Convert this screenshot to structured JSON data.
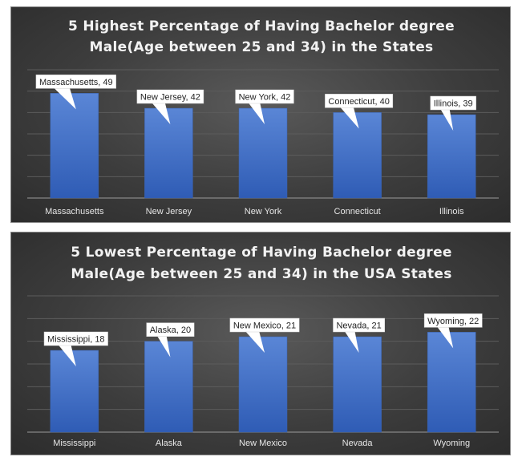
{
  "chart_data": [
    {
      "type": "bar",
      "title": "5 Highest Percentage of Having Bachelor degree Male(Age between 25 and 34) in the States",
      "title_lines": [
        "5 Highest Percentage of Having Bachelor degree",
        "Male(Age between 25 and 34) in the States"
      ],
      "categories": [
        "Massachusetts",
        "New Jersey",
        "New York",
        "Connecticut",
        "Illinois"
      ],
      "values": [
        49,
        42,
        42,
        40,
        39
      ],
      "data_labels": [
        "Massachusetts, 49",
        "New Jersey, 42",
        "New York, 42",
        "Connecticut, 40",
        "Illinois, 39"
      ],
      "ylim": [
        0,
        60
      ],
      "grid": true,
      "legend": "none",
      "bar_color": "#4472c4"
    },
    {
      "type": "bar",
      "title": "5 Lowest Percentage of Having Bachelor degree Male(Age between 25 and 34) in the USA States",
      "title_lines": [
        "5 Lowest Percentage of Having Bachelor degree",
        "Male(Age between 25 and 34) in the USA States"
      ],
      "categories": [
        "Mississippi",
        "Alaska",
        "New Mexico",
        "Nevada",
        "Wyoming"
      ],
      "values": [
        18,
        20,
        21,
        21,
        22
      ],
      "data_labels": [
        "Mississippi, 18",
        "Alaska, 20",
        "New Mexico, 21",
        "Nevada, 21",
        "Wyoming, 22"
      ],
      "ylim": [
        0,
        30
      ],
      "grid": true,
      "legend": "none",
      "bar_color": "#4472c4"
    }
  ]
}
